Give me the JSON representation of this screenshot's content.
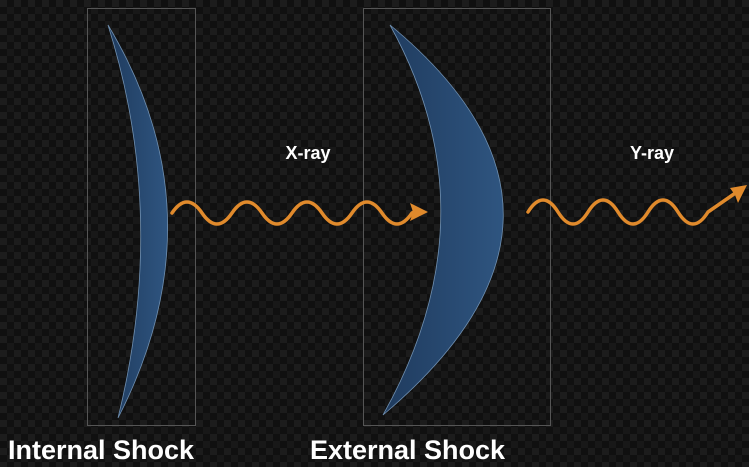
{
  "nodes": [
    {
      "label": "Internal Shock"
    },
    {
      "label": "External Shock"
    }
  ],
  "arrows": [
    {
      "label": "X-ray"
    },
    {
      "label": "Y-ray"
    }
  ]
}
